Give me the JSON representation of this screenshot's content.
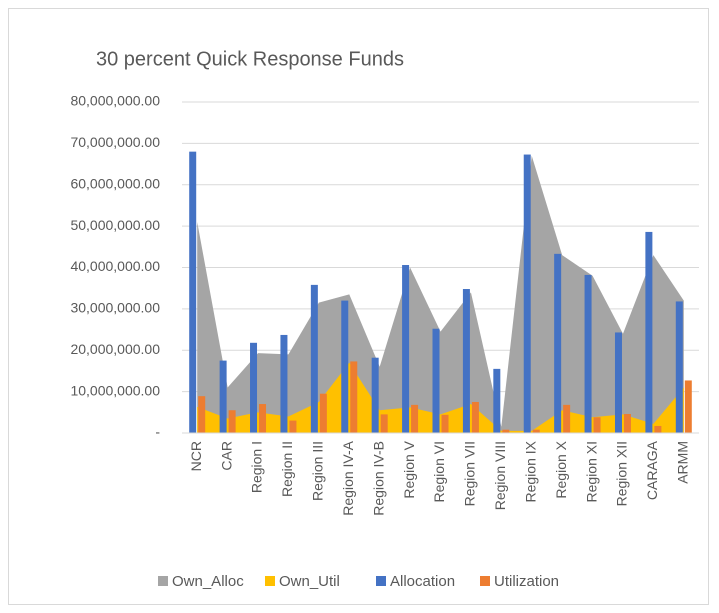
{
  "chart_data": {
    "type": "combo",
    "title": "30 percent Quick Response Funds",
    "categories": [
      "NCR",
      "CAR",
      "Region I",
      "Region II",
      "Region III",
      "Region IV-A",
      "Region IV-B",
      "Region V",
      "Region VI",
      "Region VII",
      "Region VIII",
      "Region IX",
      "Region X",
      "Region XI",
      "Region XII",
      "CARAGA",
      "ARMM"
    ],
    "series": [
      {
        "name": "Own_Alloc",
        "type": "area",
        "color": "#a5a5a5",
        "values": [
          51000000,
          11000000,
          19300000,
          19000000,
          31500000,
          33500000,
          16000000,
          40000000,
          24500000,
          34000000,
          1500000,
          67000000,
          43000000,
          38000000,
          24000000,
          43000000,
          32000000
        ]
      },
      {
        "name": "Own_Util",
        "type": "area",
        "color": "#ffc000",
        "values": [
          6300000,
          3500000,
          5000000,
          4000000,
          7500000,
          17000000,
          5500000,
          6200000,
          4500000,
          7000000,
          500000,
          500000,
          5500000,
          3800000,
          4500000,
          2200000,
          11000000
        ]
      },
      {
        "name": "Allocation",
        "type": "bar",
        "color": "#4472c4",
        "values": [
          68000000,
          17500000,
          21800000,
          23700000,
          35800000,
          32000000,
          18200000,
          40600000,
          25200000,
          34800000,
          15500000,
          67300000,
          43300000,
          38200000,
          24300000,
          48600000,
          31800000
        ]
      },
      {
        "name": "Utilization",
        "type": "bar",
        "color": "#ed7d31",
        "values": [
          8900000,
          5500000,
          7000000,
          3000000,
          9500000,
          17300000,
          4500000,
          6800000,
          4400000,
          7500000,
          800000,
          800000,
          6800000,
          3800000,
          4600000,
          1700000,
          12700000
        ]
      }
    ],
    "ylim": [
      0,
      80000000
    ],
    "yticks": [
      {
        "value": 0,
        "label": "-"
      },
      {
        "value": 10000000,
        "label": "10,000,000.00"
      },
      {
        "value": 20000000,
        "label": "20,000,000.00"
      },
      {
        "value": 30000000,
        "label": "30,000,000.00"
      },
      {
        "value": 40000000,
        "label": "40,000,000.00"
      },
      {
        "value": 50000000,
        "label": "50,000,000.00"
      },
      {
        "value": 60000000,
        "label": "60,000,000.00"
      },
      {
        "value": 70000000,
        "label": "70,000,000.00"
      },
      {
        "value": 80000000,
        "label": "80,000,000.00"
      }
    ],
    "grid": true,
    "legend": "bottom"
  }
}
